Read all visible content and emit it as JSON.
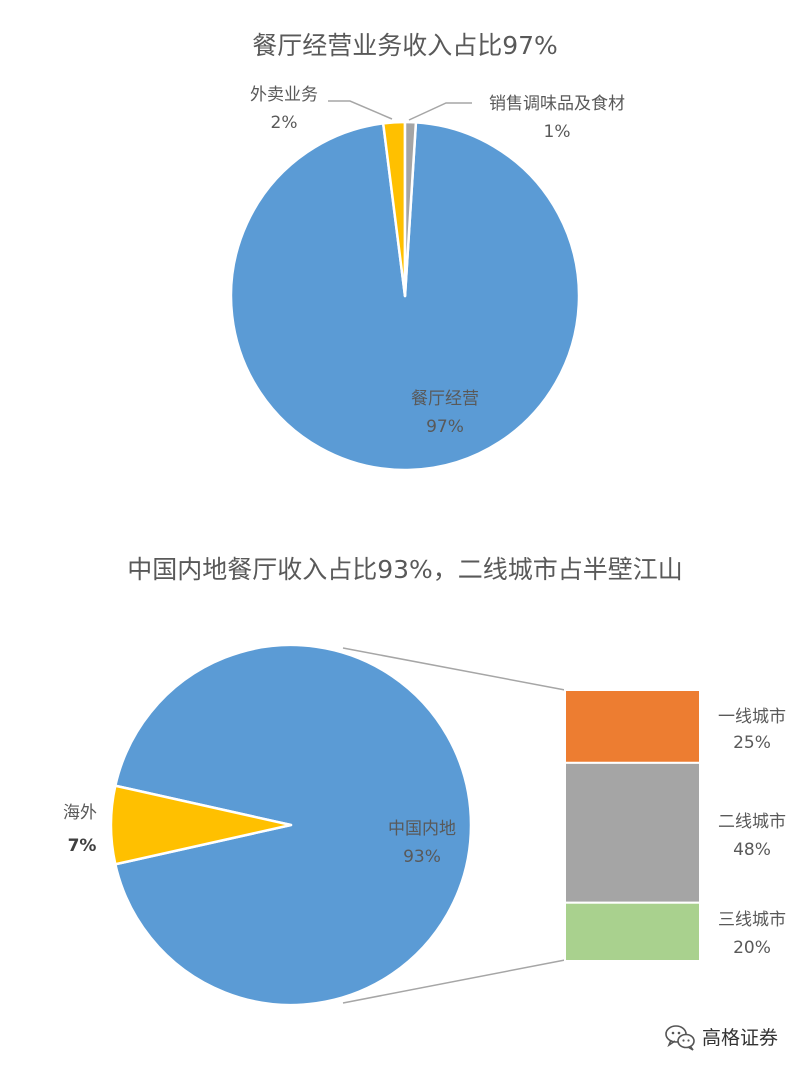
{
  "chart_data": [
    {
      "type": "pie",
      "title": "餐厅经营业务收入占比97%",
      "slices": [
        {
          "label": "餐厅经营",
          "value": 97,
          "value_label": "97%",
          "color": "#5B9BD5"
        },
        {
          "label": "外卖业务",
          "value": 2,
          "value_label": "2%",
          "color": "#FFC000"
        },
        {
          "label": "销售调味品及食材",
          "value": 1,
          "value_label": "1%",
          "color": "#A5A5A5"
        }
      ]
    },
    {
      "type": "bar-of-pie",
      "title": "中国内地餐厅收入占比93%，二线城市占半壁江山",
      "slices": [
        {
          "label": "中国内地",
          "value": 93,
          "value_label": "93%",
          "color": "#5B9BD5"
        },
        {
          "label": "海外",
          "value": 7,
          "value_label": "7%",
          "color": "#FFC000"
        }
      ],
      "breakdown": [
        {
          "label": "一线城市",
          "value": 25,
          "value_label": "25%",
          "color": "#ED7D31"
        },
        {
          "label": "二线城市",
          "value": 48,
          "value_label": "48%",
          "color": "#A5A5A5"
        },
        {
          "label": "三线城市",
          "value": 20,
          "value_label": "20%",
          "color": "#A9D18E"
        }
      ]
    }
  ],
  "watermark": {
    "text": "高格证券",
    "icon": "wechat-icon"
  }
}
